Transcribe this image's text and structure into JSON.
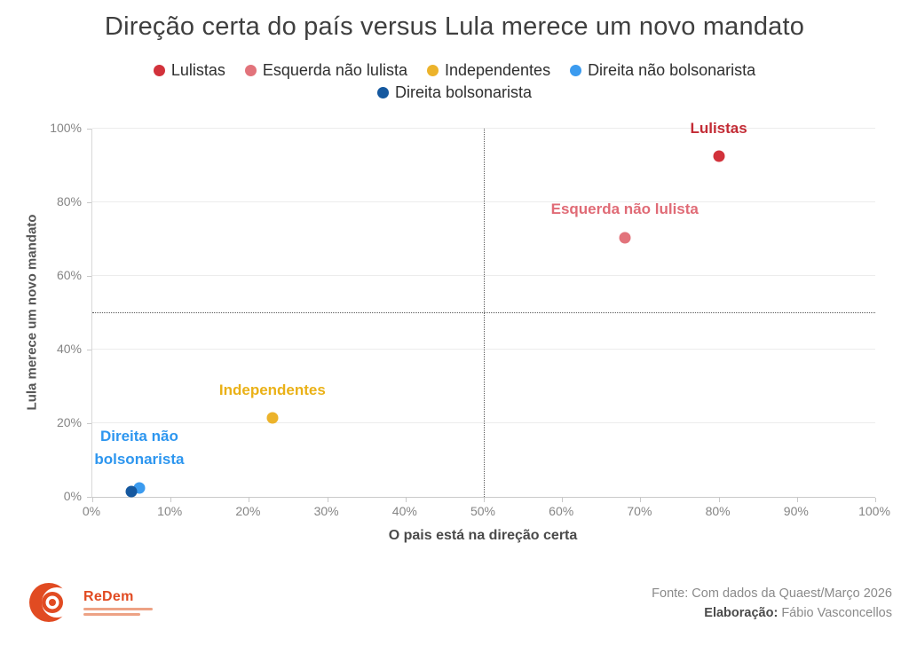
{
  "title": "Direção certa do país versus Lula merece um novo mandato",
  "footer": {
    "logo_name": "ReDem",
    "fonte": "Fonte: Com dados da Quaest/Março 2026",
    "elaboracao_label": "Elaboração:",
    "elaboracao_value": "Fábio Vasconcellos"
  },
  "chart_data": {
    "type": "scatter",
    "title": "Direção certa do país versus Lula merece um novo mandato",
    "xlabel": "O pais está na direção certa",
    "ylabel": "Lula merece um novo mandato",
    "xlim": [
      0,
      100
    ],
    "ylim": [
      0,
      100
    ],
    "x_ticks": [
      0,
      10,
      20,
      30,
      40,
      50,
      60,
      70,
      80,
      90,
      100
    ],
    "y_ticks": [
      0,
      20,
      40,
      60,
      80,
      100
    ],
    "tick_suffix": "%",
    "grid": "horizontal-only",
    "ref_lines": {
      "x": 50,
      "y": 50
    },
    "legend_rows": [
      [
        "Lulistas",
        "Esquerda não lulista",
        "Independentes",
        "Direita não bolsonarista"
      ],
      [
        "Direita bolsonarista"
      ]
    ],
    "series": [
      {
        "name": "Lulistas",
        "color": "#d2323b",
        "label_color": "#c32b35",
        "x": 80,
        "y": 94,
        "point_label": "Lulistas"
      },
      {
        "name": "Esquerda não lulista",
        "color": "#e2737b",
        "label_color": "#e06b76",
        "x": 68,
        "y": 72,
        "point_label": "Esquerda não lulista"
      },
      {
        "name": "Independentes",
        "color": "#ecb32b",
        "label_color": "#eab117",
        "x": 23,
        "y": 23,
        "point_label": "Independentes"
      },
      {
        "name": "Direita não bolsonarista",
        "color": "#3b9bef",
        "label_color": "#2d96ef",
        "x": 6,
        "y": 4,
        "point_label": "Direita não\nbolsonarista"
      },
      {
        "name": "Direita bolsonarista",
        "color": "#15589f",
        "label_color": "#15589f",
        "x": 5,
        "y": 3,
        "point_label": ""
      }
    ]
  }
}
